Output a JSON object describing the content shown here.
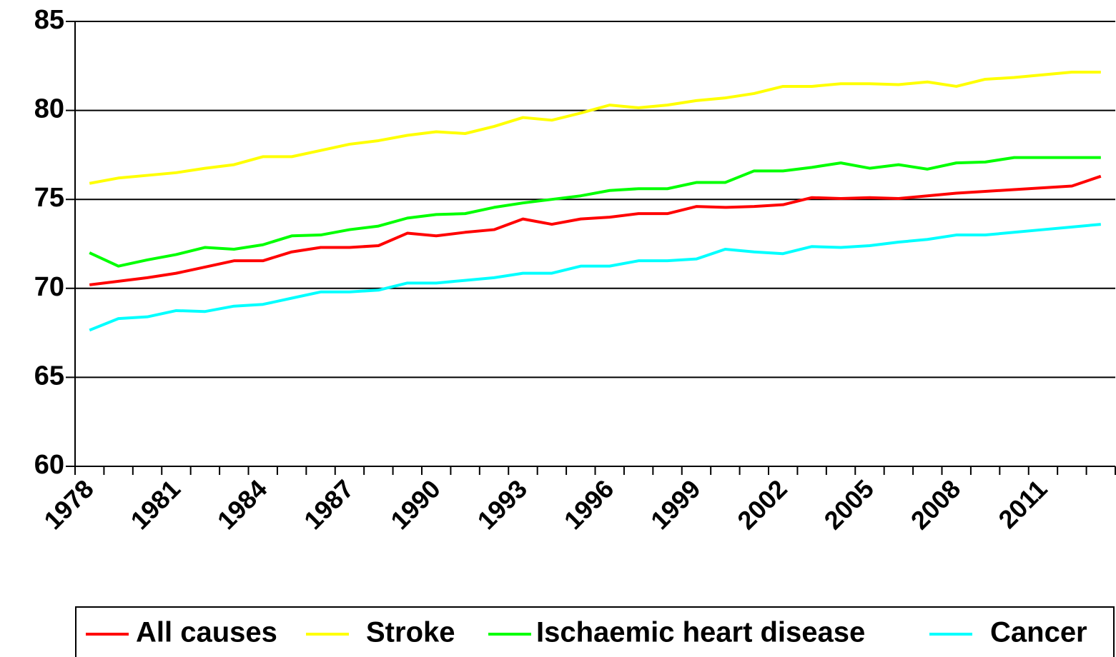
{
  "chart_data": {
    "type": "line",
    "categories": [
      "1978",
      null,
      null,
      "1981",
      null,
      null,
      "1984",
      null,
      null,
      "1987",
      null,
      null,
      "1990",
      null,
      null,
      "1993",
      null,
      null,
      "1996",
      null,
      null,
      "1999",
      null,
      null,
      "2002",
      null,
      null,
      "2005",
      null,
      null,
      "2008",
      null,
      null,
      "2011",
      null,
      null
    ],
    "series": [
      {
        "name": "All causes",
        "color": "#ff0000",
        "values": [
          70.2,
          70.4,
          70.6,
          70.85,
          71.2,
          71.55,
          71.55,
          72.05,
          72.3,
          72.3,
          72.4,
          73.1,
          72.95,
          73.15,
          73.3,
          73.9,
          73.6,
          73.9,
          74.0,
          74.2,
          74.2,
          74.6,
          74.55,
          74.6,
          74.7,
          75.1,
          75.05,
          75.1,
          75.05,
          75.2,
          75.35,
          75.45,
          75.55,
          75.65,
          75.75,
          76.3
        ]
      },
      {
        "name": "Stroke",
        "color": "#ffff00",
        "values": [
          75.9,
          76.2,
          76.35,
          76.5,
          76.75,
          76.95,
          77.4,
          77.4,
          77.75,
          78.1,
          78.3,
          78.6,
          78.8,
          78.7,
          79.1,
          79.6,
          79.45,
          79.85,
          80.3,
          80.15,
          80.3,
          80.55,
          80.7,
          80.95,
          81.35,
          81.35,
          81.5,
          81.5,
          81.45,
          81.6,
          81.35,
          81.75,
          81.85,
          82.0,
          82.15,
          82.15
        ]
      },
      {
        "name": "Ischaemic heart disease",
        "color": "#00ff00",
        "values": [
          72.0,
          71.25,
          71.6,
          71.9,
          72.3,
          72.2,
          72.45,
          72.95,
          73.0,
          73.3,
          73.5,
          73.95,
          74.15,
          74.2,
          74.55,
          74.8,
          75.0,
          75.2,
          75.5,
          75.6,
          75.6,
          75.95,
          75.95,
          76.6,
          76.6,
          76.8,
          77.05,
          76.75,
          76.95,
          76.7,
          77.05,
          77.1,
          77.35,
          77.35,
          77.35,
          77.35
        ]
      },
      {
        "name": "Cancer",
        "color": "#00ffff",
        "values": [
          67.65,
          68.3,
          68.4,
          68.75,
          68.7,
          69.0,
          69.1,
          69.45,
          69.8,
          69.8,
          69.9,
          70.3,
          70.3,
          70.45,
          70.6,
          70.85,
          70.85,
          71.25,
          71.25,
          71.55,
          71.55,
          71.65,
          72.2,
          72.05,
          71.95,
          72.35,
          72.3,
          72.4,
          72.6,
          72.75,
          73.0,
          73.0,
          73.15,
          73.3,
          73.45,
          73.6
        ]
      }
    ],
    "ylim": [
      60,
      85
    ],
    "yticks": [
      60,
      65,
      70,
      75,
      80,
      85
    ],
    "grid": true,
    "legend": "bottom"
  }
}
